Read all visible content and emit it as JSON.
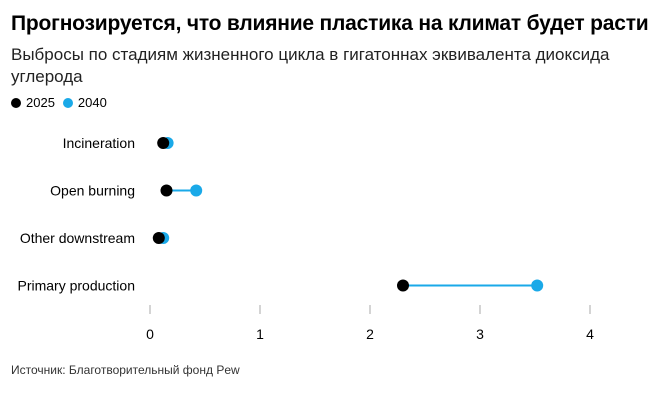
{
  "header": {
    "title": "Прогнозируется, что влияние пластика на климат будет расти",
    "subtitle": "Выбросы по стадиям жизненного цикла в гигатоннах эквивалента диоксида углерода"
  },
  "legend": [
    {
      "label": "2025",
      "color": "#000000"
    },
    {
      "label": "2040",
      "color": "#1aa9e8"
    }
  ],
  "chart_data": {
    "type": "dumbbell",
    "title": "Прогнозируется, что влияние пластика на климат будет расти",
    "subtitle": "Выбросы по стадиям жизненного цикла в гигатоннах эквивалента диоксида углерода",
    "categories": [
      "Incineration",
      "Open burning",
      "Other downstream",
      "Primary production"
    ],
    "series": [
      {
        "name": "2025",
        "color": "#000000",
        "values": [
          0.12,
          0.15,
          0.08,
          2.3
        ]
      },
      {
        "name": "2040",
        "color": "#1aa9e8",
        "values": [
          0.16,
          0.42,
          0.12,
          3.52
        ]
      }
    ],
    "xlim": [
      0,
      4
    ],
    "xticks": [
      0,
      1,
      2,
      3,
      4
    ],
    "connector_color": "#1aa9e8",
    "legend_position": "top-left",
    "grid": false
  },
  "footer": {
    "source": "Источник: Благотворительный фонд Pew"
  }
}
